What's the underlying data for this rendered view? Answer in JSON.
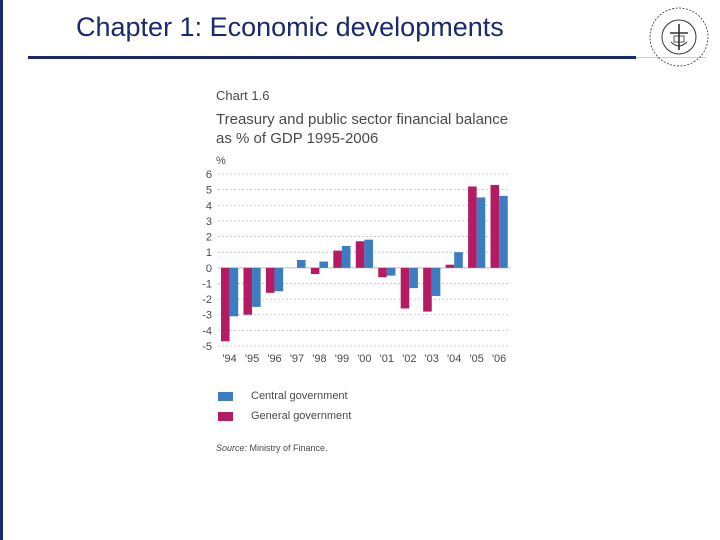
{
  "slide": {
    "title": "Chapter 1: Economic developments",
    "logo": {
      "name": "university-seal",
      "text": "SUDIASA LI SKI JAN OS"
    }
  },
  "colors": {
    "title": "#1a2a6c",
    "central": "#3b7dc0",
    "general": "#b51b63",
    "grid": "#bdbdbd",
    "text": "#4a4a4a"
  },
  "chart_data": {
    "type": "bar",
    "label": "Chart 1.6",
    "title": "Treasury and public sector financial balance as % of GDP 1995-2006",
    "ylabel": "%",
    "ylim": [
      -5,
      6
    ],
    "yticks": [
      6,
      5,
      4,
      3,
      2,
      1,
      0,
      -1,
      -2,
      -3,
      -4,
      -5
    ],
    "categories": [
      "'94",
      "'95",
      "'96",
      "'97",
      "'98",
      "'99",
      "'00",
      "'01",
      "'02",
      "'03",
      "'04",
      "'05",
      "'06"
    ],
    "series": [
      {
        "name": "General government",
        "color": "#b51b63",
        "values": [
          -4.7,
          -3.0,
          -1.6,
          null,
          -0.4,
          1.1,
          1.7,
          -0.6,
          -2.6,
          -2.8,
          0.2,
          5.2,
          5.3
        ]
      },
      {
        "name": "Central government",
        "color": "#3b7dc0",
        "values": [
          -3.1,
          -2.5,
          -1.5,
          0.5,
          0.4,
          1.4,
          1.8,
          -0.5,
          -1.3,
          -1.8,
          1.0,
          4.5,
          4.6
        ]
      }
    ],
    "legend": [
      "Central government",
      "General government"
    ],
    "source_label": "Source:",
    "source_text": " Ministry of Finance."
  }
}
